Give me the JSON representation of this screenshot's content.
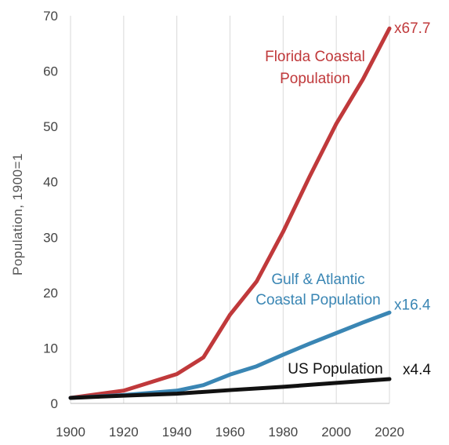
{
  "chart_data": {
    "type": "line",
    "title": "",
    "xlabel": "",
    "ylabel": "Population, 1900=1",
    "xlim": [
      1900,
      2020
    ],
    "ylim": [
      0,
      70
    ],
    "x_ticks": [
      1900,
      1920,
      1940,
      1960,
      1980,
      2000,
      2020
    ],
    "y_ticks": [
      0,
      10,
      20,
      30,
      40,
      50,
      60,
      70
    ],
    "grid": {
      "vertical": true,
      "horizontal": false
    },
    "legend": "none",
    "series": [
      {
        "key": "florida",
        "name_lines": [
          "Florida Coastal",
          "Population"
        ],
        "end_label": "x67.7",
        "color": "#c0393b",
        "points": [
          [
            1900,
            1
          ],
          [
            1920,
            2.3
          ],
          [
            1940,
            5.3
          ],
          [
            1950,
            8.3
          ],
          [
            1960,
            16
          ],
          [
            1970,
            22
          ],
          [
            1980,
            31
          ],
          [
            1990,
            41
          ],
          [
            2000,
            50.5
          ],
          [
            2010,
            58.5
          ],
          [
            2020,
            67.7
          ]
        ]
      },
      {
        "key": "gulf-atlantic",
        "name_lines": [
          "Gulf & Atlantic",
          "Coastal Population"
        ],
        "end_label": "x16.4",
        "color": "#3a86b4",
        "points": [
          [
            1900,
            1
          ],
          [
            1920,
            1.5
          ],
          [
            1940,
            2.3
          ],
          [
            1950,
            3.3
          ],
          [
            1960,
            5.2
          ],
          [
            1970,
            6.7
          ],
          [
            1980,
            8.8
          ],
          [
            1990,
            10.8
          ],
          [
            2000,
            12.7
          ],
          [
            2010,
            14.6
          ],
          [
            2020,
            16.4
          ]
        ]
      },
      {
        "key": "us",
        "name_lines": [
          "US Population"
        ],
        "end_label": "x4.4",
        "color": "#111111",
        "points": [
          [
            1900,
            1
          ],
          [
            1920,
            1.4
          ],
          [
            1940,
            1.75
          ],
          [
            1960,
            2.4
          ],
          [
            1980,
            3.0
          ],
          [
            2000,
            3.7
          ],
          [
            2020,
            4.4
          ]
        ]
      }
    ]
  }
}
